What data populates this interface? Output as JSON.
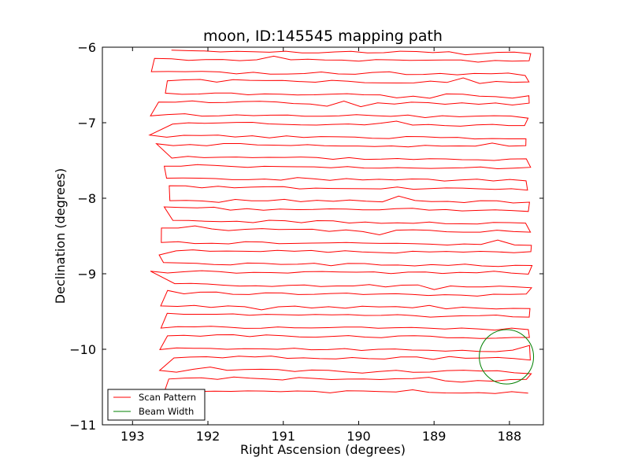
{
  "chart_data": {
    "type": "line",
    "title": "moon, ID:145545 mapping path",
    "xlabel": "Right Ascension (degrees)",
    "ylabel": "Declination (degrees)",
    "xlim": [
      193.4,
      187.55
    ],
    "ylim": [
      -11,
      -6
    ],
    "x_inverted": true,
    "xticks": [
      193,
      192,
      191,
      190,
      189,
      188
    ],
    "xtick_labels": [
      "193",
      "192",
      "191",
      "190",
      "189",
      "188"
    ],
    "yticks": [
      -6,
      -7,
      -8,
      -9,
      -10,
      -11
    ],
    "ytick_labels": [
      "−6",
      "−7",
      "−8",
      "−9",
      "−10",
      "−11"
    ],
    "grid": false,
    "legend_position": "lower-left",
    "series": [
      {
        "name": "Scan Pattern",
        "color": "#ff0000",
        "style": "raster",
        "x_min": 192.6,
        "x_max": 187.75,
        "n_rows": 33,
        "dec_start": -6.05,
        "dec_end": -10.55
      },
      {
        "name": "Beam Width",
        "color": "#008000",
        "style": "circle",
        "center": [
          188.04,
          -10.1
        ],
        "radius_deg": 0.36
      }
    ]
  }
}
